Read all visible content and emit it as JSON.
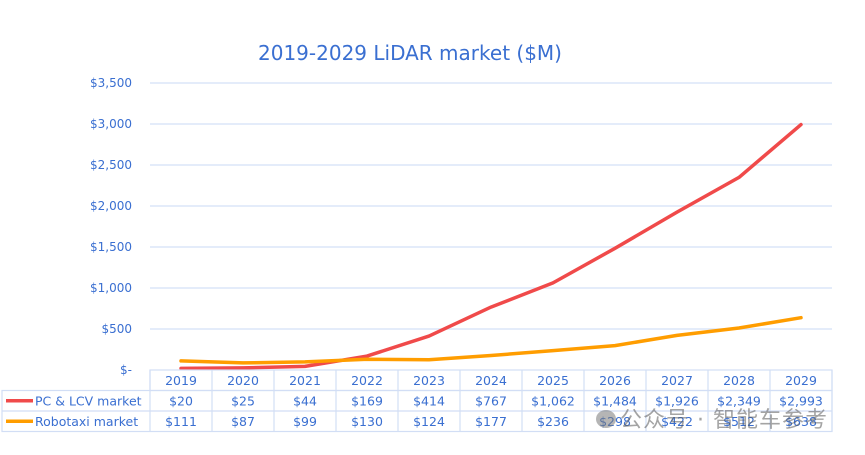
{
  "chart_data": {
    "type": "line",
    "title": "2019-2029 LiDAR market ($M)",
    "xlabel": "",
    "ylabel": "",
    "ylim": [
      0,
      3500
    ],
    "y_ticks": [
      0,
      500,
      1000,
      1500,
      2000,
      2500,
      3000,
      3500
    ],
    "y_tick_labels": [
      "$-",
      "$500",
      "$1,000",
      "$1,500",
      "$2,000",
      "$2,500",
      "$3,000",
      "$3,500"
    ],
    "grid": true,
    "legend": "bottom-left (data table)",
    "categories": [
      "2019",
      "2020",
      "2021",
      "2022",
      "2023",
      "2024",
      "2025",
      "2026",
      "2027",
      "2028",
      "2029"
    ],
    "series": [
      {
        "name": "PC & LCV market",
        "color": "#f04a4a",
        "values": [
          20,
          25,
          44,
          169,
          414,
          767,
          1062,
          1484,
          1926,
          2349,
          2993
        ],
        "labels": [
          "$20",
          "$25",
          "$44",
          "$169",
          "$414",
          "$767",
          "$1,062",
          "$1,484",
          "$1,926",
          "$2,349",
          "$2,993"
        ]
      },
      {
        "name": "Robotaxi market",
        "color": "#ff9d00",
        "values": [
          111,
          87,
          99,
          130,
          124,
          177,
          236,
          298,
          422,
          512,
          638
        ],
        "labels": [
          "$111",
          "$87",
          "$99",
          "$130",
          "$124",
          "$177",
          "$236",
          "$298",
          "$422",
          "$512",
          "$638"
        ]
      }
    ]
  },
  "watermark": {
    "text": "公众号 · 智能车参考"
  }
}
